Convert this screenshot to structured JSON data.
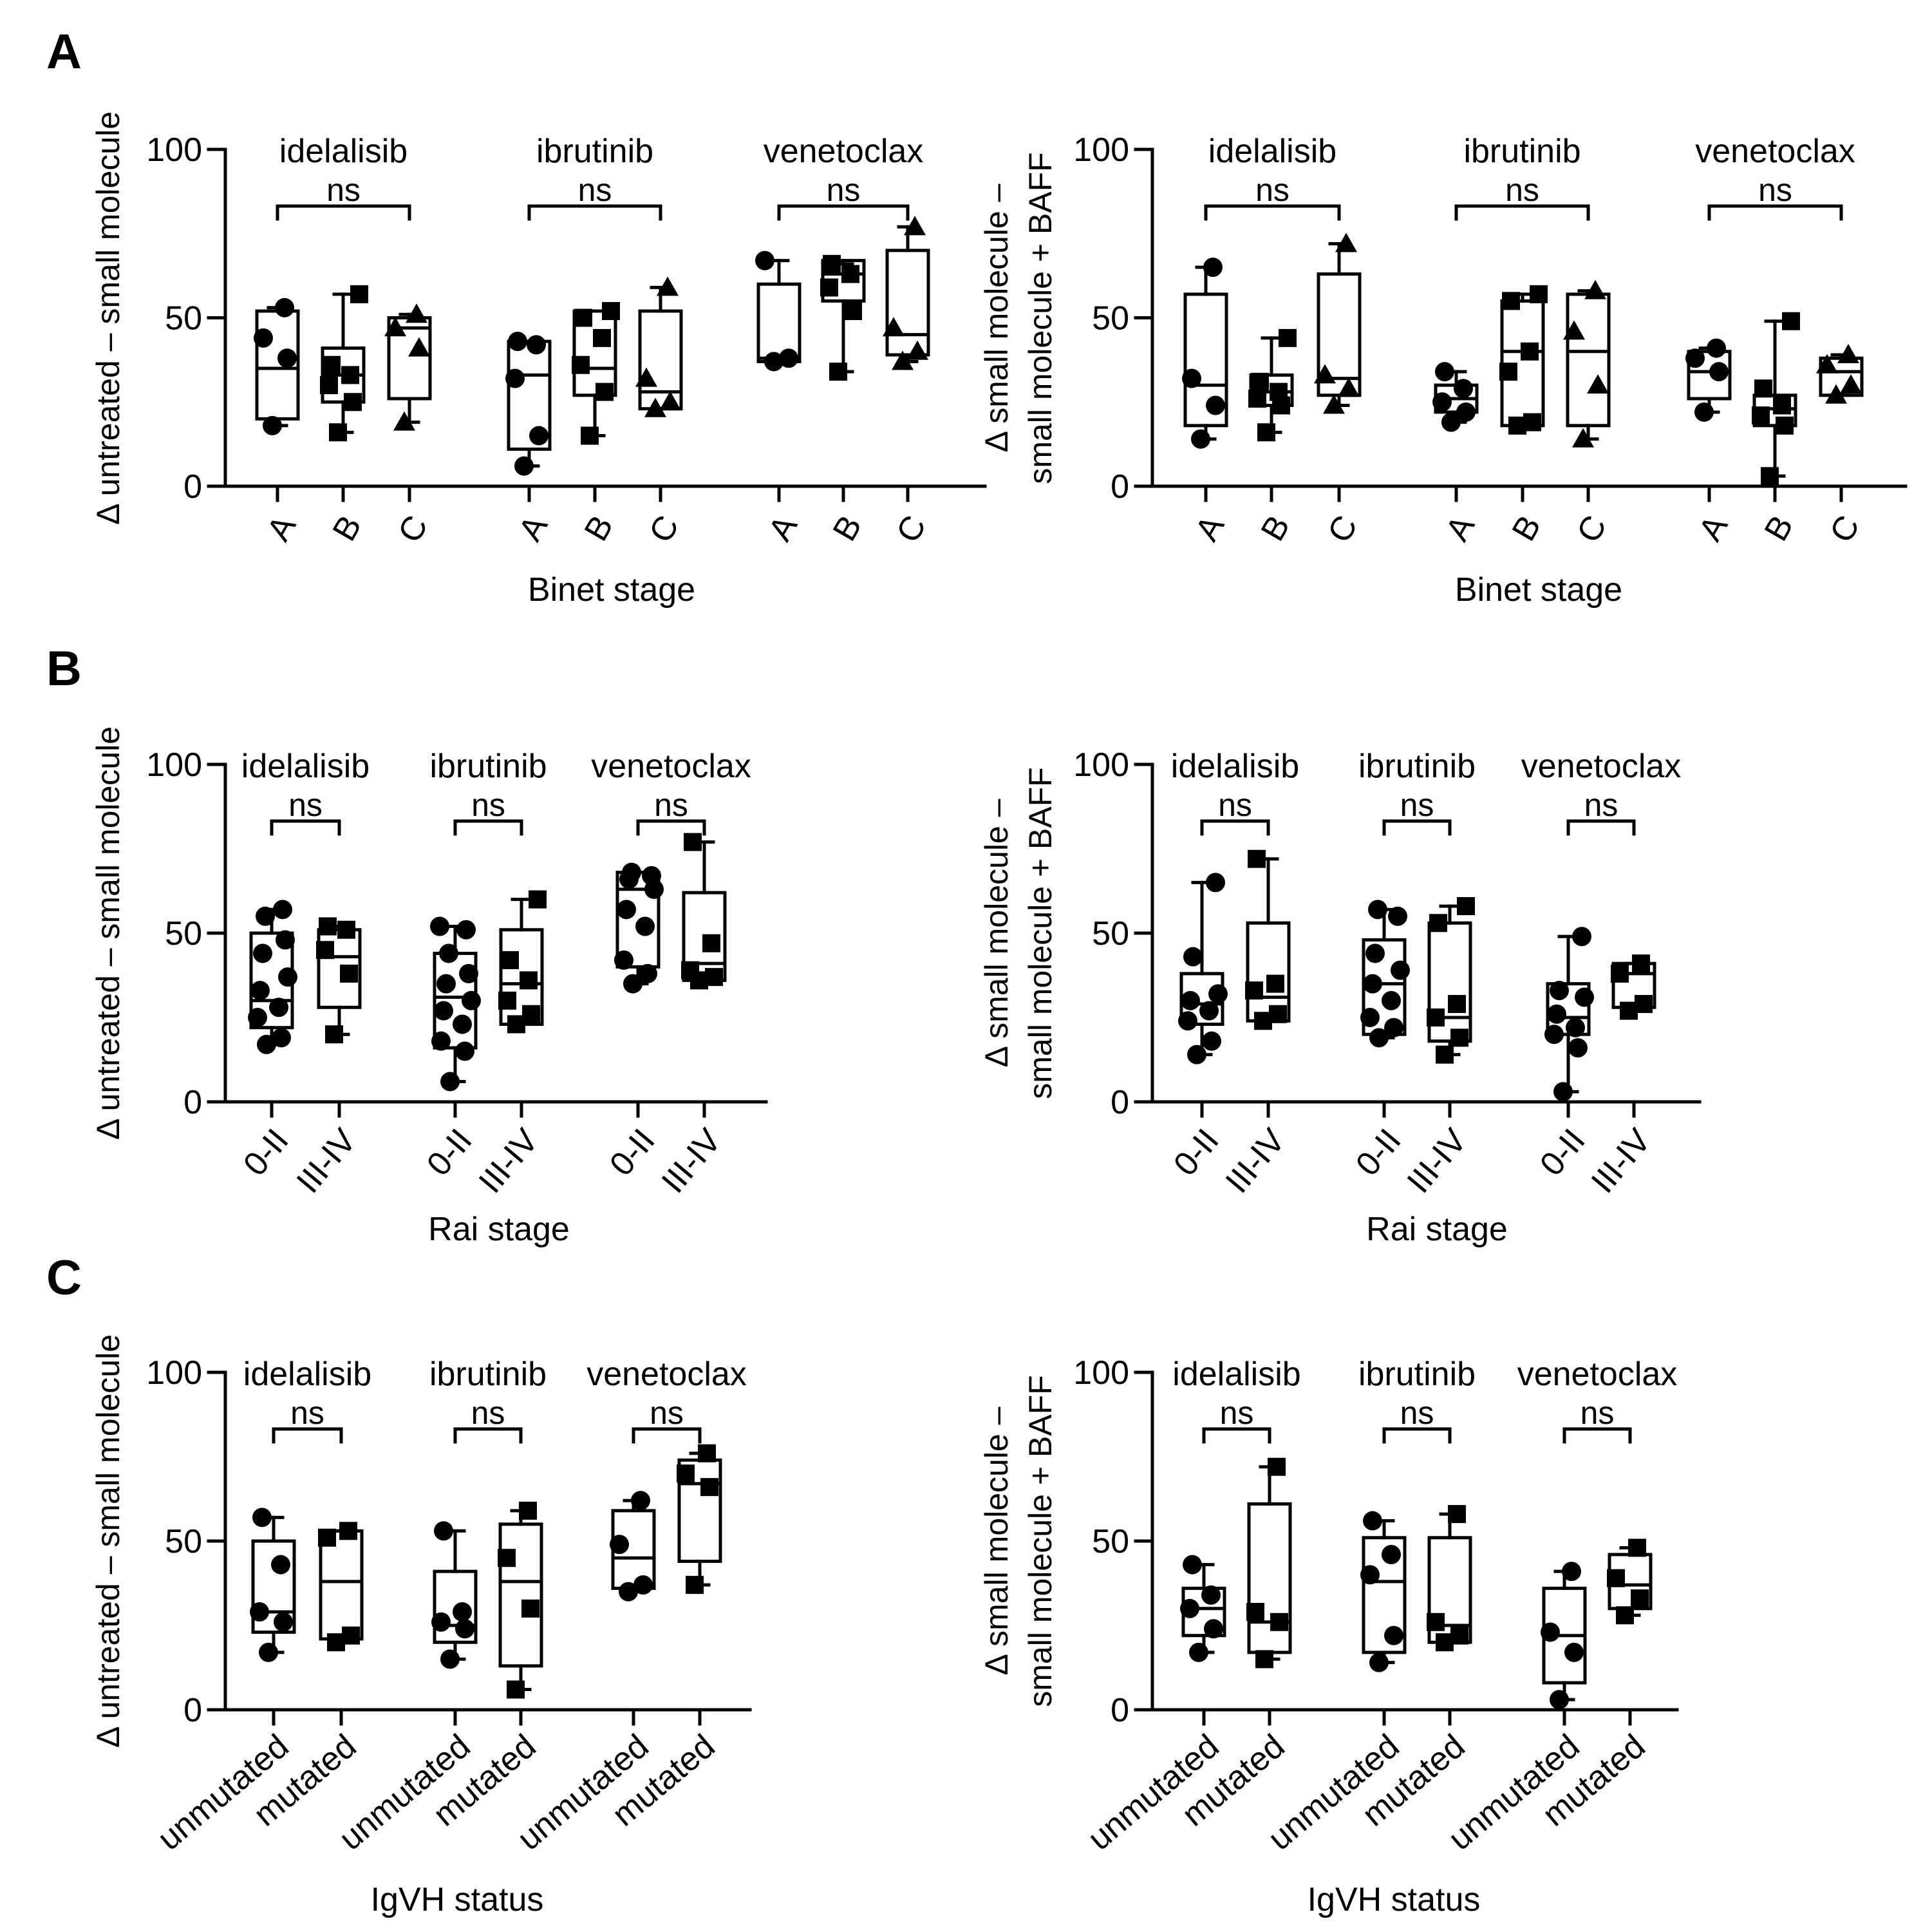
{
  "panel_letters": [
    "A",
    "B",
    "C"
  ],
  "chart_data": [
    {
      "type": "box",
      "panel": "A",
      "xlabel": "Binet stage",
      "ylabel": [
        "Δ untreated – small molecule"
      ],
      "ylim": [
        0,
        100
      ],
      "yticks": [
        0,
        50,
        100
      ],
      "categories": [
        "A",
        "B",
        "C"
      ],
      "series": [
        {
          "drug": "idelalisib",
          "test": "ns",
          "groups": [
            {
              "cat": "A",
              "points": [
                18,
                38,
                44,
                53
              ],
              "box": [
                20,
                35,
                52
              ]
            },
            {
              "cat": "B",
              "points": [
                16,
                25,
                30,
                33,
                36,
                57
              ],
              "box": [
                25,
                33,
                41
              ]
            },
            {
              "cat": "C",
              "points": [
                19,
                41,
                47,
                51
              ],
              "box": [
                26,
                47,
                50
              ]
            }
          ]
        },
        {
          "drug": "ibrutinib",
          "test": "ns",
          "groups": [
            {
              "cat": "A",
              "points": [
                6,
                15,
                32,
                42,
                43
              ],
              "box": [
                11,
                33,
                43
              ]
            },
            {
              "cat": "B",
              "points": [
                15,
                28,
                36,
                44,
                50,
                52
              ],
              "box": [
                27,
                35,
                52
              ]
            },
            {
              "cat": "C",
              "points": [
                23,
                25,
                32,
                59
              ],
              "box": [
                23,
                28,
                52
              ]
            }
          ]
        },
        {
          "drug": "venetoclax",
          "test": "ns",
          "groups": [
            {
              "cat": "A",
              "points": [
                37,
                38,
                67
              ],
              "box": [
                37,
                38,
                60
              ]
            },
            {
              "cat": "B",
              "points": [
                34,
                52,
                59,
                63,
                66
              ],
              "box": [
                55,
                63,
                67
              ]
            },
            {
              "cat": "C",
              "points": [
                37,
                40,
                47,
                77
              ],
              "box": [
                39,
                45,
                70
              ]
            }
          ]
        }
      ]
    },
    {
      "type": "box",
      "panel": "A",
      "xlabel": "Binet stage",
      "ylabel": [
        "Δ small molecule –",
        "small molecule + BAFF"
      ],
      "ylim": [
        0,
        100
      ],
      "yticks": [
        0,
        50,
        100
      ],
      "categories": [
        "A",
        "B",
        "C"
      ],
      "series": [
        {
          "drug": "idelalisib",
          "test": "ns",
          "groups": [
            {
              "cat": "A",
              "points": [
                14,
                24,
                32,
                65
              ],
              "box": [
                18,
                30,
                57
              ]
            },
            {
              "cat": "B",
              "points": [
                16,
                24,
                26,
                28,
                31,
                44
              ],
              "box": [
                24,
                28,
                33
              ]
            },
            {
              "cat": "C",
              "points": [
                24,
                29,
                33,
                72
              ],
              "box": [
                27,
                32,
                63
              ]
            }
          ]
        },
        {
          "drug": "ibrutinib",
          "test": "ns",
          "groups": [
            {
              "cat": "A",
              "points": [
                19,
                22,
                25,
                29,
                34
              ],
              "box": [
                22,
                26,
                30
              ]
            },
            {
              "cat": "B",
              "points": [
                18,
                19,
                34,
                40,
                55,
                57
              ],
              "box": [
                18,
                40,
                55
              ]
            },
            {
              "cat": "C",
              "points": [
                14,
                30,
                46,
                58
              ],
              "box": [
                18,
                40,
                57
              ]
            }
          ]
        },
        {
          "drug": "venetoclax",
          "test": "ns",
          "groups": [
            {
              "cat": "A",
              "points": [
                22,
                34,
                38,
                41
              ],
              "box": [
                26,
                34,
                40
              ]
            },
            {
              "cat": "B",
              "points": [
                3,
                18,
                21,
                24,
                29,
                49
              ],
              "box": [
                18,
                23,
                27
              ]
            },
            {
              "cat": "C",
              "points": [
                27,
                30,
                36,
                39
              ],
              "box": [
                27,
                34,
                38
              ]
            }
          ]
        }
      ]
    },
    {
      "type": "box",
      "panel": "B",
      "xlabel": "Rai stage",
      "ylabel": [
        "Δ untreated – small molecule"
      ],
      "ylim": [
        0,
        100
      ],
      "yticks": [
        0,
        50,
        100
      ],
      "categories": [
        "0-II",
        "III-IV"
      ],
      "series": [
        {
          "drug": "idelalisib",
          "test": "ns",
          "groups": [
            {
              "cat": "0-II",
              "points": [
                17,
                19,
                25,
                28,
                33,
                37,
                44,
                48,
                55,
                57
              ],
              "box": [
                22,
                30,
                50
              ]
            },
            {
              "cat": "III-IV",
              "points": [
                20,
                38,
                45,
                51,
                52
              ],
              "box": [
                28,
                43,
                51
              ]
            }
          ]
        },
        {
          "drug": "ibrutinib",
          "test": "ns",
          "groups": [
            {
              "cat": "0-II",
              "points": [
                6,
                15,
                18,
                23,
                27,
                30,
                35,
                38,
                44,
                51,
                52
              ],
              "box": [
                16,
                31,
                44
              ]
            },
            {
              "cat": "III-IV",
              "points": [
                23,
                26,
                30,
                36,
                42,
                60
              ],
              "box": [
                23,
                35,
                51
              ]
            }
          ]
        },
        {
          "drug": "venetoclax",
          "test": "ns",
          "groups": [
            {
              "cat": "0-II",
              "points": [
                35,
                38,
                42,
                52,
                57,
                63,
                66,
                67,
                68
              ],
              "box": [
                40,
                63,
                68
              ]
            },
            {
              "cat": "III-IV",
              "points": [
                36,
                37,
                39,
                47,
                77
              ],
              "box": [
                36,
                41,
                62
              ]
            }
          ]
        }
      ]
    },
    {
      "type": "box",
      "panel": "B",
      "xlabel": "Rai stage",
      "ylabel": [
        "Δ small molecule –",
        "small molecule + BAFF"
      ],
      "ylim": [
        0,
        100
      ],
      "yticks": [
        0,
        50,
        100
      ],
      "categories": [
        "0-II",
        "III-IV"
      ],
      "series": [
        {
          "drug": "idelalisib",
          "test": "ns",
          "groups": [
            {
              "cat": "0-II",
              "points": [
                14,
                18,
                24,
                27,
                30,
                32,
                43,
                65
              ],
              "box": [
                23,
                29,
                38
              ]
            },
            {
              "cat": "III-IV",
              "points": [
                24,
                26,
                33,
                35,
                72
              ],
              "box": [
                24,
                31,
                53
              ]
            }
          ]
        },
        {
          "drug": "ibrutinib",
          "test": "ns",
          "groups": [
            {
              "cat": "0-II",
              "points": [
                19,
                22,
                25,
                30,
                35,
                39,
                44,
                55,
                57
              ],
              "box": [
                20,
                35,
                48
              ]
            },
            {
              "cat": "III-IV",
              "points": [
                14,
                19,
                25,
                29,
                53,
                58
              ],
              "box": [
                18,
                25,
                53
              ]
            }
          ]
        },
        {
          "drug": "venetoclax",
          "test": "ns",
          "groups": [
            {
              "cat": "0-II",
              "points": [
                3,
                16,
                20,
                22,
                26,
                31,
                33,
                49
              ],
              "box": [
                20,
                25,
                35
              ]
            },
            {
              "cat": "III-IV",
              "points": [
                27,
                29,
                38,
                41
              ],
              "box": [
                28,
                38,
                41
              ]
            }
          ]
        }
      ]
    },
    {
      "type": "box",
      "panel": "C",
      "xlabel": "IgVH status",
      "ylabel": [
        "Δ untreated – small molecule"
      ],
      "ylim": [
        0,
        100
      ],
      "yticks": [
        0,
        50,
        100
      ],
      "categories": [
        "unmutated",
        "mutated"
      ],
      "series": [
        {
          "drug": "idelalisib",
          "test": "ns",
          "groups": [
            {
              "cat": "unmutated",
              "points": [
                17,
                26,
                29,
                43,
                57
              ],
              "box": [
                23,
                29,
                50
              ]
            },
            {
              "cat": "mutated",
              "points": [
                20,
                22,
                51,
                53
              ],
              "box": [
                21,
                38,
                53
              ]
            }
          ]
        },
        {
          "drug": "ibrutinib",
          "test": "ns",
          "groups": [
            {
              "cat": "unmutated",
              "points": [
                15,
                24,
                26,
                29,
                53
              ],
              "box": [
                20,
                25,
                41
              ]
            },
            {
              "cat": "mutated",
              "points": [
                6,
                30,
                45,
                59
              ],
              "box": [
                13,
                38,
                55
              ]
            }
          ]
        },
        {
          "drug": "venetoclax",
          "test": "ns",
          "groups": [
            {
              "cat": "unmutated",
              "points": [
                35,
                37,
                49,
                62
              ],
              "box": [
                36,
                45,
                59
              ]
            },
            {
              "cat": "mutated",
              "points": [
                37,
                66,
                70,
                76
              ],
              "box": [
                44,
                67,
                74
              ]
            }
          ]
        }
      ]
    },
    {
      "type": "box",
      "panel": "C",
      "xlabel": "IgVH status",
      "ylabel": [
        "Δ small molecule –",
        "small molecule + BAFF"
      ],
      "ylim": [
        0,
        100
      ],
      "yticks": [
        0,
        50,
        100
      ],
      "categories": [
        "unmutated",
        "mutated"
      ],
      "series": [
        {
          "drug": "idelalisib",
          "test": "ns",
          "groups": [
            {
              "cat": "unmutated",
              "points": [
                17,
                24,
                30,
                34,
                43
              ],
              "box": [
                22,
                30,
                36
              ]
            },
            {
              "cat": "mutated",
              "points": [
                15,
                26,
                29,
                72
              ],
              "box": [
                17,
                26,
                61
              ]
            }
          ]
        },
        {
          "drug": "ibrutinib",
          "test": "ns",
          "groups": [
            {
              "cat": "unmutated",
              "points": [
                14,
                22,
                40,
                46,
                56
              ],
              "box": [
                17,
                38,
                51
              ]
            },
            {
              "cat": "mutated",
              "points": [
                20,
                22,
                26,
                58
              ],
              "box": [
                20,
                25,
                51
              ]
            }
          ]
        },
        {
          "drug": "venetoclax",
          "test": "ns",
          "groups": [
            {
              "cat": "unmutated",
              "points": [
                3,
                17,
                23,
                41
              ],
              "box": [
                8,
                22,
                36
              ]
            },
            {
              "cat": "mutated",
              "points": [
                28,
                33,
                39,
                48
              ],
              "box": [
                30,
                37,
                46
              ]
            }
          ]
        }
      ]
    }
  ]
}
